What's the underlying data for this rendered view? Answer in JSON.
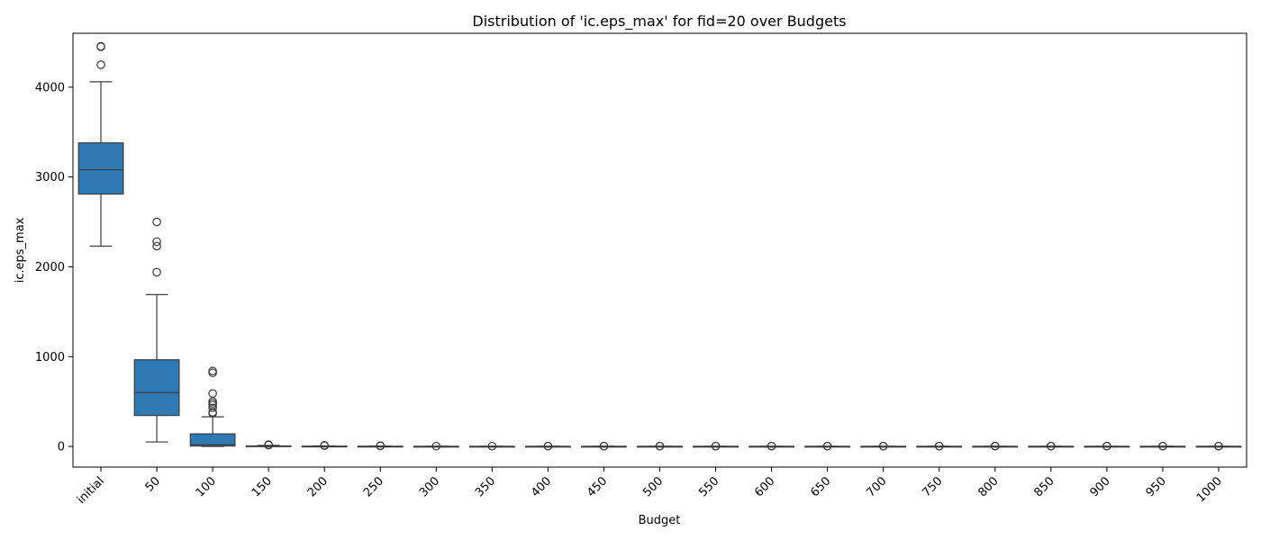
{
  "chart_data": {
    "type": "box",
    "title": "Distribution of 'ic.eps_max' for fid=20 over Budgets",
    "xlabel": "Budget",
    "ylabel": "ic.eps_max",
    "ylim": [
      -230,
      4600
    ],
    "yticks": [
      0,
      1000,
      2000,
      3000,
      4000
    ],
    "grid": false,
    "legend": "none",
    "box_color": "#2f79b5",
    "line_color": "#3b3b3b",
    "categories": [
      "initial",
      "50",
      "100",
      "150",
      "200",
      "250",
      "300",
      "350",
      "400",
      "450",
      "500",
      "550",
      "600",
      "650",
      "700",
      "750",
      "800",
      "850",
      "900",
      "950",
      "1000"
    ],
    "boxes": [
      {
        "whisker_low": 2230,
        "q1": 2810,
        "median": 3080,
        "q3": 3380,
        "whisker_high": 4060,
        "outliers": [
          4250,
          4450,
          4455
        ]
      },
      {
        "whisker_low": 50,
        "q1": 345,
        "median": 600,
        "q3": 965,
        "whisker_high": 1690,
        "outliers": [
          1940,
          2230,
          2280,
          2500
        ]
      },
      {
        "whisker_low": 0,
        "q1": 5,
        "median": 20,
        "q3": 140,
        "whisker_high": 330,
        "outliers": [
          370,
          380,
          430,
          460,
          480,
          500,
          590,
          820,
          840
        ]
      },
      {
        "whisker_low": 0,
        "q1": 0,
        "median": 2,
        "q3": 6,
        "whisker_high": 12,
        "outliers": [
          15,
          20
        ]
      },
      {
        "whisker_low": 0,
        "q1": 0,
        "median": 1,
        "q3": 3,
        "whisker_high": 6,
        "outliers": [
          8,
          12
        ]
      },
      {
        "whisker_low": 0,
        "q1": 0,
        "median": 1,
        "q3": 2,
        "whisker_high": 4,
        "outliers": [
          6,
          9
        ]
      },
      {
        "whisker_low": 0,
        "q1": 0,
        "median": 0.5,
        "q3": 1,
        "whisker_high": 2,
        "outliers": [
          3
        ]
      },
      {
        "whisker_low": 0,
        "q1": 0,
        "median": 0.5,
        "q3": 1,
        "whisker_high": 2,
        "outliers": [
          3
        ]
      },
      {
        "whisker_low": 0,
        "q1": 0,
        "median": 0.5,
        "q3": 1,
        "whisker_high": 2,
        "outliers": [
          3,
          4
        ]
      },
      {
        "whisker_low": 0,
        "q1": 0,
        "median": 0.5,
        "q3": 1,
        "whisker_high": 2,
        "outliers": [
          3,
          4
        ]
      },
      {
        "whisker_low": 0,
        "q1": 0,
        "median": 0.5,
        "q3": 1,
        "whisker_high": 2,
        "outliers": [
          3,
          4
        ]
      },
      {
        "whisker_low": 0,
        "q1": 0,
        "median": 0.5,
        "q3": 1,
        "whisker_high": 2,
        "outliers": [
          3,
          4
        ]
      },
      {
        "whisker_low": 0,
        "q1": 0,
        "median": 0.5,
        "q3": 1,
        "whisker_high": 2,
        "outliers": [
          3,
          4
        ]
      },
      {
        "whisker_low": 0,
        "q1": 0,
        "median": 0.5,
        "q3": 1,
        "whisker_high": 2,
        "outliers": [
          3,
          4
        ]
      },
      {
        "whisker_low": 0,
        "q1": 0,
        "median": 0.5,
        "q3": 1,
        "whisker_high": 2,
        "outliers": [
          3,
          4
        ]
      },
      {
        "whisker_low": 0,
        "q1": 0,
        "median": 0.5,
        "q3": 1,
        "whisker_high": 2,
        "outliers": [
          3,
          4
        ]
      },
      {
        "whisker_low": 0,
        "q1": 0,
        "median": 0.5,
        "q3": 1,
        "whisker_high": 2,
        "outliers": [
          3,
          4
        ]
      },
      {
        "whisker_low": 0,
        "q1": 0,
        "median": 0.5,
        "q3": 1,
        "whisker_high": 2,
        "outliers": [
          3,
          4
        ]
      },
      {
        "whisker_low": 0,
        "q1": 0,
        "median": 0.5,
        "q3": 1,
        "whisker_high": 2,
        "outliers": [
          3,
          4
        ]
      },
      {
        "whisker_low": 0,
        "q1": 0,
        "median": 0.5,
        "q3": 1,
        "whisker_high": 2,
        "outliers": [
          3,
          4
        ]
      },
      {
        "whisker_low": 0,
        "q1": 0,
        "median": 0.5,
        "q3": 1,
        "whisker_high": 2,
        "outliers": [
          3,
          4
        ]
      }
    ]
  }
}
